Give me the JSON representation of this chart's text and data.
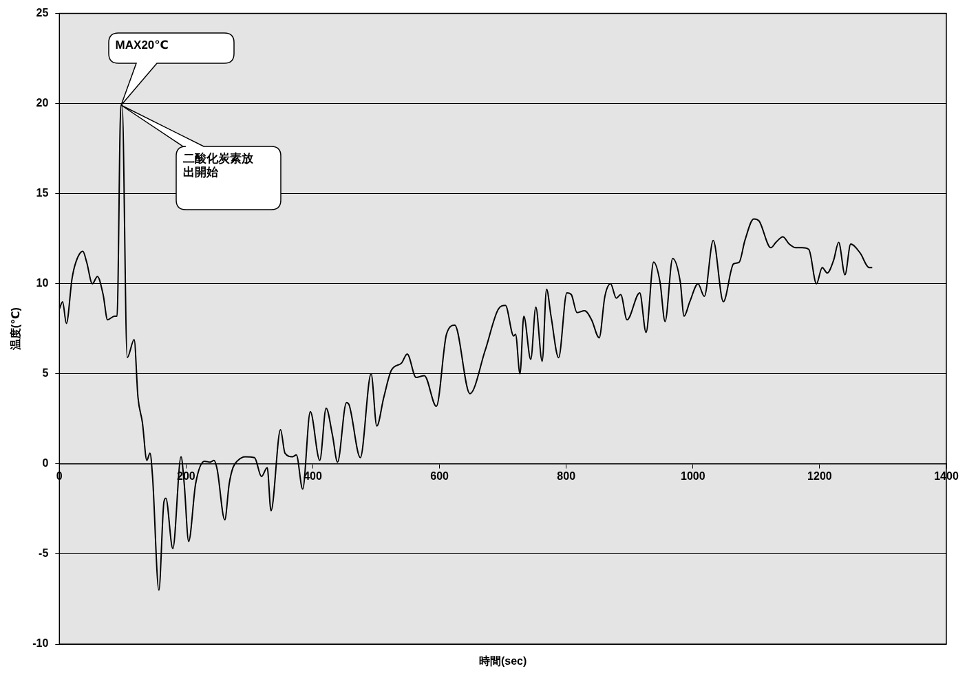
{
  "chart_data": {
    "type": "line",
    "xlabel": "時間(sec)",
    "ylabel": "温度(℃)",
    "xlim": [
      0,
      1400
    ],
    "xticks": [
      0,
      200,
      400,
      600,
      800,
      1000,
      1200,
      1400
    ],
    "ylim": [
      -10,
      25
    ],
    "yticks": [
      -10,
      -5,
      0,
      5,
      10,
      15,
      20,
      25
    ],
    "grid": "y",
    "legend": false,
    "marker": "none",
    "line_style": "solid",
    "annotations": [
      "MAX20℃",
      "二酸化炭素放出開始"
    ],
    "series": [
      {
        "color": "#000000",
        "x": [
          0,
          5,
          11,
          20,
          26,
          37,
          43,
          52,
          60,
          69,
          76,
          87,
          91,
          97,
          99,
          107,
          118,
          124,
          131,
          138,
          143,
          147,
          157,
          165,
          168,
          179,
          192,
          197,
          204,
          215,
          229,
          238,
          244,
          249,
          261,
          268,
          274,
          282,
          293,
          308,
          319,
          328,
          334,
          349,
          356,
          368,
          374,
          384,
          396,
          411,
          421,
          431,
          439,
          453,
          457,
          475,
          492,
          501,
          512,
          524,
          540,
          549,
          563,
          576,
          595,
          611,
          624,
          648,
          672,
          693,
          704,
          717,
          720,
          727,
          733,
          744,
          752,
          762,
          769,
          776,
          788,
          801,
          808,
          817,
          829,
          840,
          852,
          861,
          870,
          879,
          886,
          896,
          916,
          926,
          938,
          948,
          956,
          968,
          980,
          986,
          995,
          1008,
          1018,
          1032,
          1048,
          1064,
          1073,
          1082,
          1096,
          1104,
          1123,
          1131,
          1142,
          1152,
          1162,
          1172,
          1183,
          1195,
          1204,
          1212,
          1222,
          1230,
          1240,
          1249,
          1264,
          1278,
          1283
        ],
        "values": [
          8.6,
          9.0,
          7.8,
          10.3,
          11.2,
          11.8,
          11.2,
          10.0,
          10.4,
          9.4,
          8.0,
          8.2,
          8.2,
          19.9,
          19.9,
          5.9,
          6.9,
          3.7,
          2.3,
          0.2,
          0.6,
          -0.7,
          -7.0,
          -2.1,
          -1.9,
          -4.7,
          0.4,
          -1.1,
          -4.3,
          -1.1,
          0.15,
          0.1,
          0.2,
          -0.3,
          -3.1,
          -1.1,
          -0.2,
          0.2,
          0.4,
          0.35,
          -0.7,
          -0.2,
          -2.6,
          1.9,
          0.6,
          0.4,
          0.5,
          -1.4,
          2.9,
          0.2,
          3.1,
          1.6,
          0.1,
          3.4,
          3.3,
          0.35,
          5.0,
          2.1,
          3.7,
          5.2,
          5.6,
          6.1,
          4.8,
          4.9,
          3.2,
          7.2,
          7.7,
          3.9,
          6.3,
          8.6,
          8.8,
          7.1,
          7.2,
          5.0,
          8.2,
          5.8,
          8.7,
          5.7,
          9.7,
          8.2,
          5.9,
          9.5,
          9.4,
          8.4,
          8.5,
          8.0,
          7.0,
          9.3,
          10.0,
          9.2,
          9.4,
          8.0,
          9.5,
          7.3,
          11.2,
          10.1,
          7.9,
          11.4,
          10.1,
          8.2,
          9.0,
          10.0,
          9.3,
          12.4,
          9.0,
          11.1,
          11.2,
          12.4,
          13.6,
          13.5,
          12.0,
          12.3,
          12.6,
          12.2,
          12.0,
          12.0,
          11.9,
          10.0,
          10.9,
          10.6,
          11.3,
          12.3,
          10.5,
          12.2,
          11.7,
          10.9,
          10.9
        ]
      }
    ]
  }
}
